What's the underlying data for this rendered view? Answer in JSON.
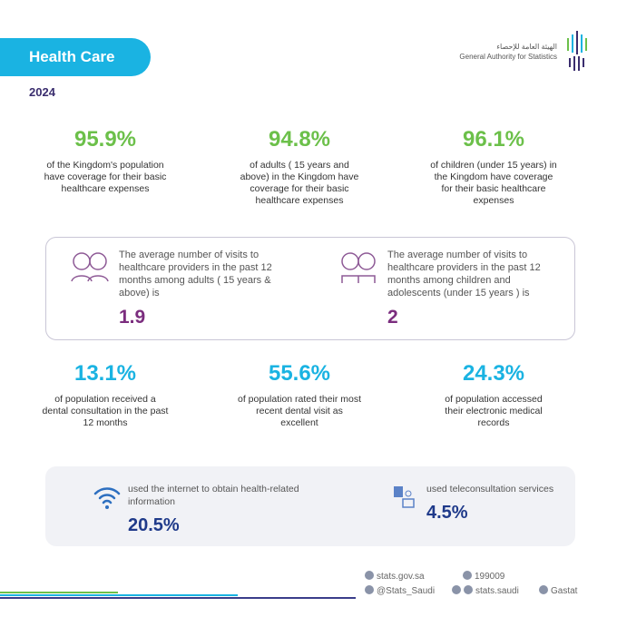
{
  "header": {
    "title": "Health Care",
    "year": "2024",
    "org_ar": "الهيئة العامة للإحصاء",
    "org_en": "General Authority for Statistics"
  },
  "coverage": [
    {
      "value": "95.9%",
      "text": "of the Kingdom's population  have coverage for their basic healthcare expenses"
    },
    {
      "value": "94.8%",
      "text": "of adults ( 15 years and above) in the Kingdom have coverage for their basic healthcare expenses"
    },
    {
      "value": "96.1%",
      "text": "of children (under 15 years) in the Kingdom have coverage for their basic healthcare expenses"
    }
  ],
  "visits": [
    {
      "text": "The average number of visits to healthcare providers in the past 12 months among adults ( 15 years & above) is",
      "value": "1.9",
      "icon": "adults-icon"
    },
    {
      "text": "The average number of visits to healthcare providers in the past 12 months among children and adolescents (under 15 years ) is",
      "value": "2",
      "icon": "children-icon"
    }
  ],
  "dental": [
    {
      "value": "13.1%",
      "text": "of  population received a dental consultation in the past 12 months"
    },
    {
      "value": "55.6%",
      "text": "of  population rated their most recent dental visit as excellent"
    },
    {
      "value": "24.3%",
      "text": "of  population accessed their electronic medical records"
    }
  ],
  "digital": [
    {
      "text": "used the internet to obtain health-related information",
      "value": "20.5%",
      "icon": "wifi-icon"
    },
    {
      "text": "used teleconsultation services",
      "value": "4.5%",
      "icon": "teleconsultation-icon"
    }
  ],
  "footer": {
    "website": "stats.gov.sa",
    "phone": "199009",
    "x": "@Stats_Saudi",
    "social": "stats.saudi",
    "linkedin": "Gastat"
  },
  "colors": {
    "green": "#6cc04a",
    "cyan": "#1ab3e2",
    "purple": "#7b2d7e",
    "navy": "#1f3a8a"
  }
}
